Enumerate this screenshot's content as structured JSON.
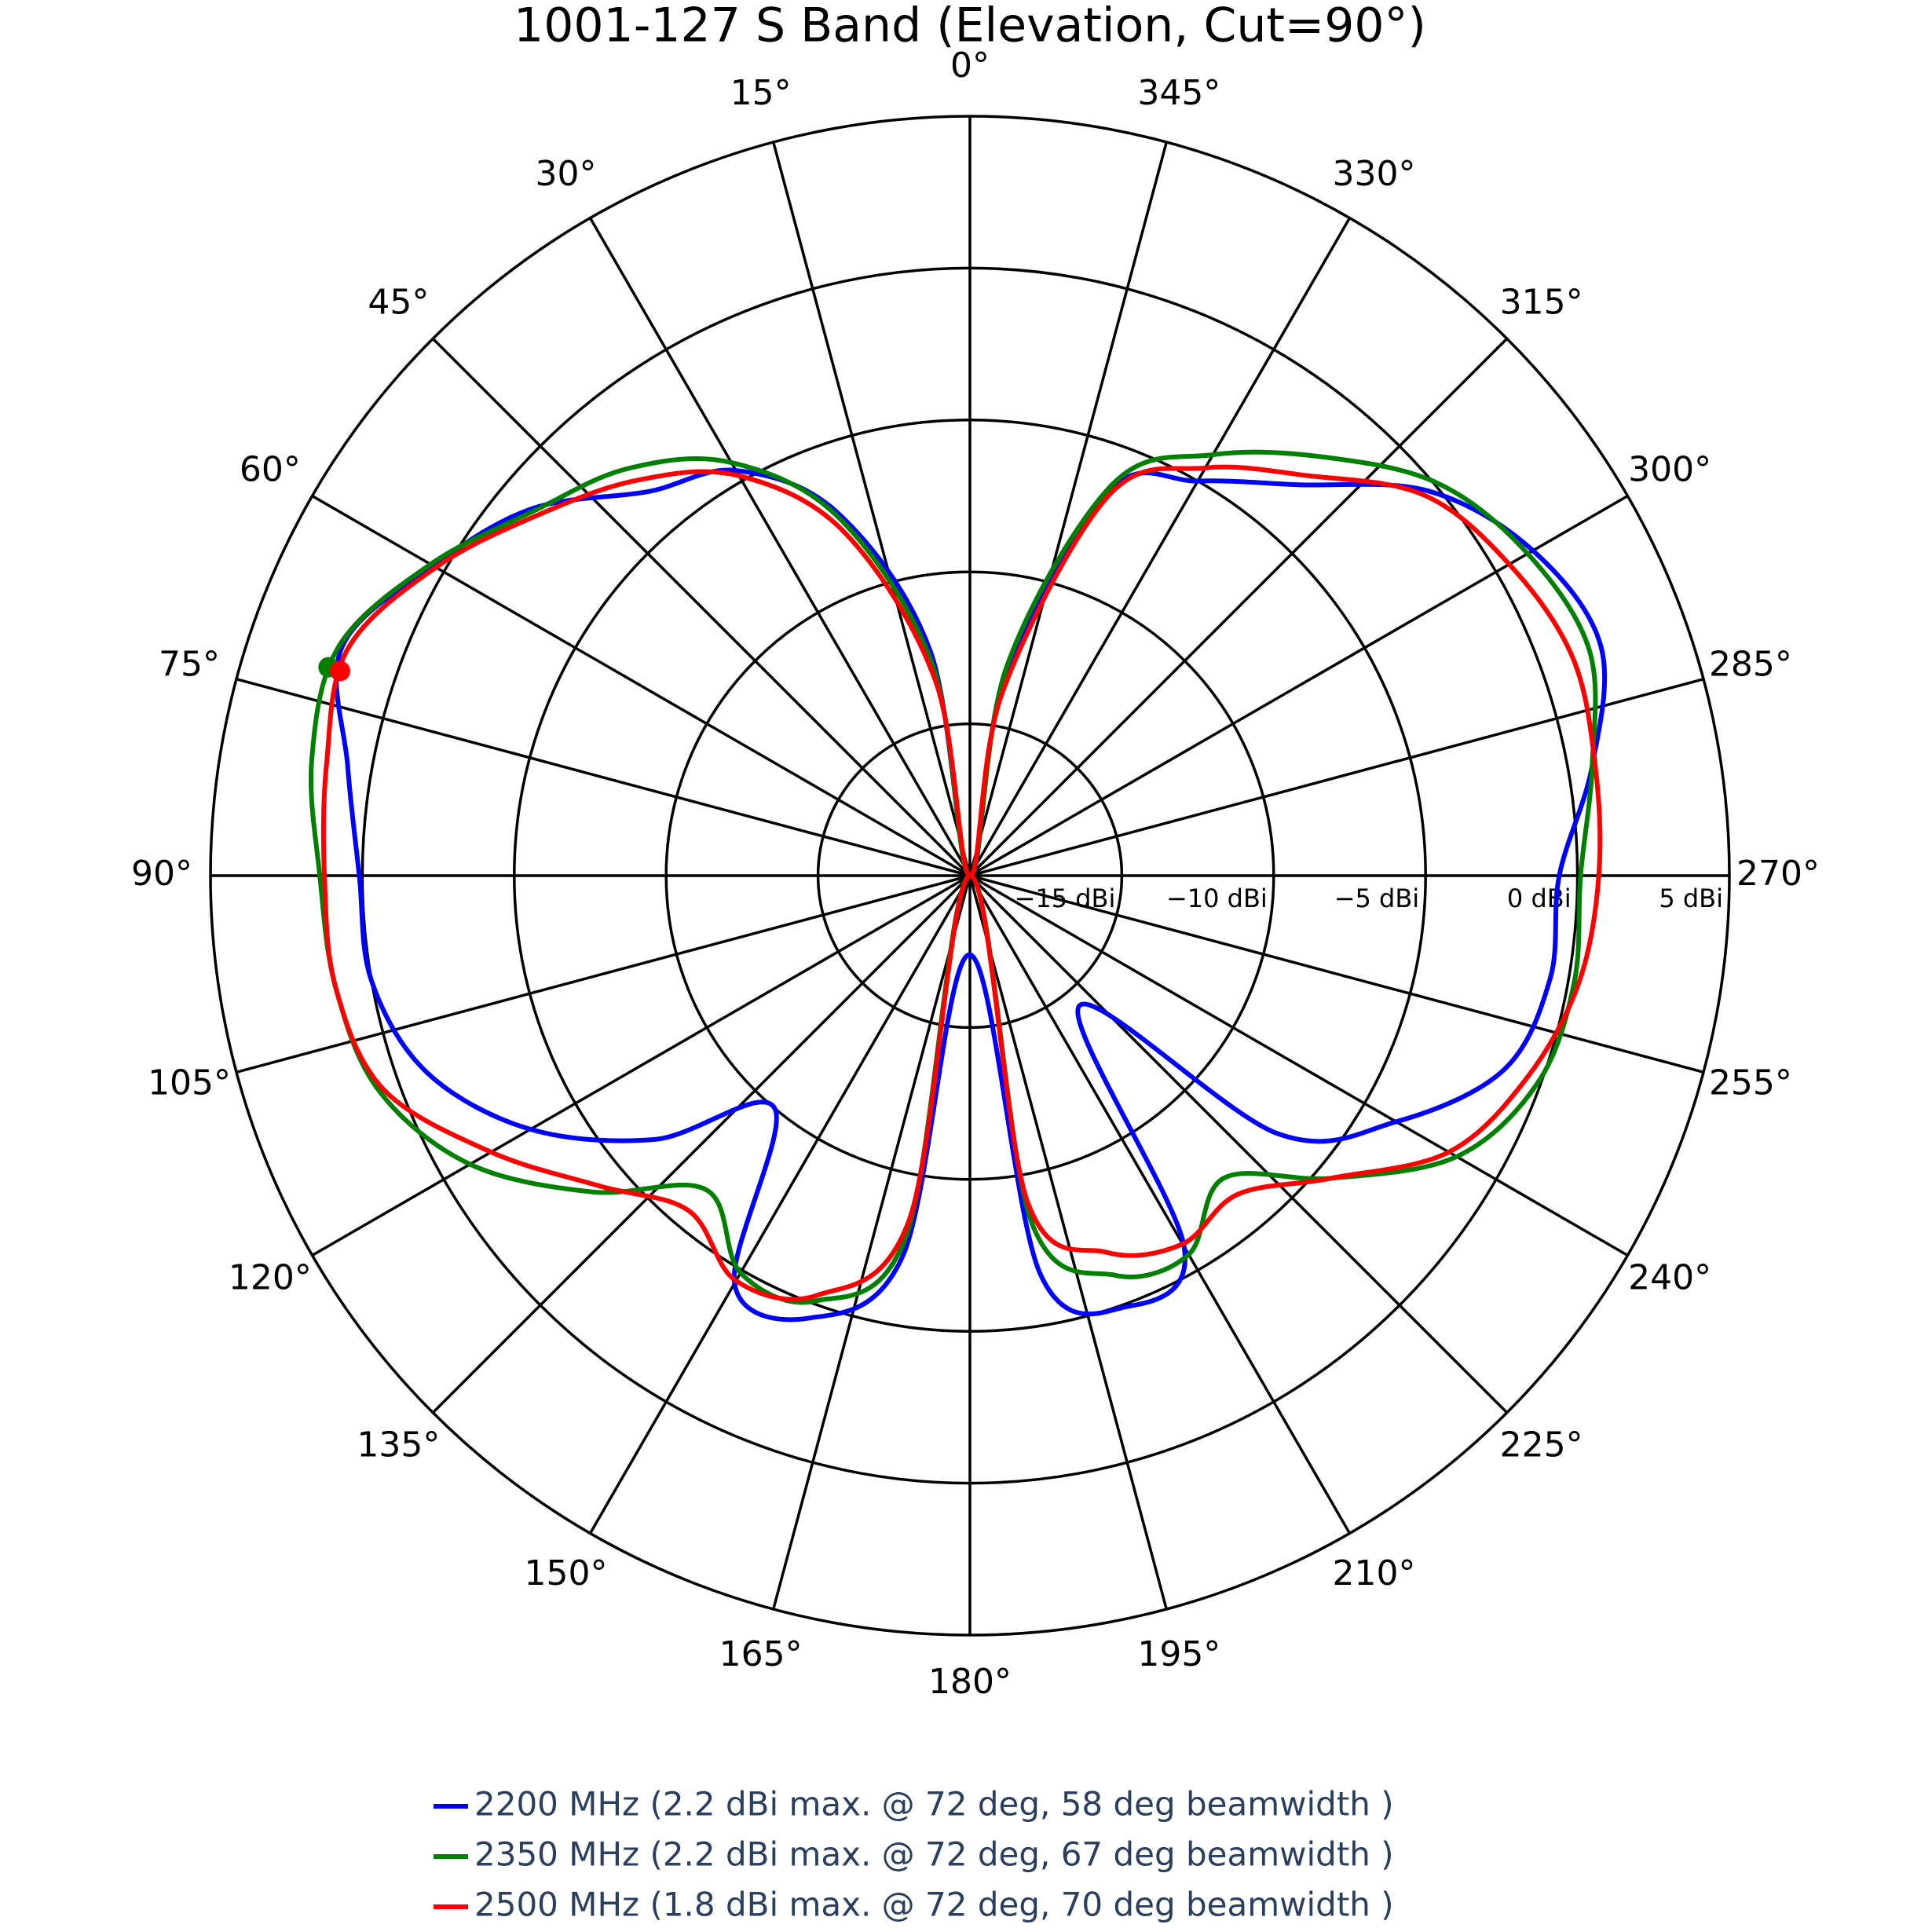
{
  "chart_data": {
    "type": "polar",
    "title": "1001-127 S Band (Elevation, Cut=90°)",
    "direction": "counterclockwise",
    "rlim": [
      -20,
      5
    ],
    "rticks": [
      {
        "value": -15,
        "label": "−15 dBi"
      },
      {
        "value": -10,
        "label": "−10 dBi"
      },
      {
        "value": -5,
        "label": "−5 dBi"
      },
      {
        "value": 0,
        "label": "0 dBi"
      },
      {
        "value": 5,
        "label": "5 dBi"
      }
    ],
    "thetaticks": [
      {
        "value": 0,
        "label": "0°"
      },
      {
        "value": 15,
        "label": "15°"
      },
      {
        "value": 30,
        "label": "30°"
      },
      {
        "value": 45,
        "label": "45°"
      },
      {
        "value": 60,
        "label": "60°"
      },
      {
        "value": 75,
        "label": "75°"
      },
      {
        "value": 90,
        "label": "90°"
      },
      {
        "value": 105,
        "label": "105°"
      },
      {
        "value": 120,
        "label": "120°"
      },
      {
        "value": 135,
        "label": "135°"
      },
      {
        "value": 150,
        "label": "150°"
      },
      {
        "value": 165,
        "label": "165°"
      },
      {
        "value": 180,
        "label": "180°"
      },
      {
        "value": 195,
        "label": "195°"
      },
      {
        "value": 210,
        "label": "210°"
      },
      {
        "value": 225,
        "label": "225°"
      },
      {
        "value": 240,
        "label": "240°"
      },
      {
        "value": 255,
        "label": "255°"
      },
      {
        "value": 270,
        "label": "270°"
      },
      {
        "value": 285,
        "label": "285°"
      },
      {
        "value": 300,
        "label": "300°"
      },
      {
        "value": 315,
        "label": "315°"
      },
      {
        "value": 330,
        "label": "330°"
      },
      {
        "value": 345,
        "label": "345°"
      }
    ],
    "grid": true,
    "theta": [
      0,
      10,
      20,
      30,
      40,
      50,
      60,
      70,
      80,
      90,
      100,
      110,
      120,
      130,
      140,
      150,
      160,
      170,
      180,
      190,
      200,
      210,
      220,
      230,
      240,
      250,
      260,
      270,
      280,
      290,
      300,
      310,
      320,
      330,
      340,
      350
    ],
    "series": [
      {
        "name": "2200 MHz (2.2 dBi max. @ 72 deg, 58 deg beamwidth )",
        "color": "#0000ff",
        "values": [
          -20,
          -12.5,
          -7.3,
          -4.6,
          -3.5,
          -1.2,
          0.4,
          2.0,
          0.8,
          0.1,
          0.0,
          -1.0,
          -3.3,
          -6.5,
          -10,
          -4.5,
          -4.5,
          -7.3,
          -17.4,
          -6.7,
          -4.9,
          -5.9,
          -14.4,
          -6.8,
          -3.8,
          -1.3,
          -0.6,
          -0.6,
          0.8,
          2.1,
          1.4,
          -0.3,
          -3.2,
          -5.0,
          -6.5,
          -13.5
        ]
      },
      {
        "name": "2350 MHz (2.2 dBi max. @ 72 deg, 67 deg beamwidth )",
        "color": "#008000",
        "values": [
          -20,
          -13,
          -7.5,
          -4.3,
          -2.5,
          -1.3,
          0.5,
          2.1,
          2.0,
          1.4,
          1.2,
          0.7,
          -1.0,
          -3.8,
          -6.5,
          -4.9,
          -5.1,
          -8.0,
          -20,
          -8.5,
          -6.0,
          -5.6,
          -7.0,
          -4.5,
          -1.5,
          -0.1,
          0.2,
          0.1,
          0.8,
          1.7,
          1.2,
          0.1,
          -2.0,
          -4.0,
          -6.3,
          -13
        ],
        "marker": {
          "theta": 72,
          "r": 2.2
        }
      },
      {
        "name": "2500 MHz (1.8 dBi max. @ 72 deg, 70 deg beamwidth )",
        "color": "#ff0000",
        "values": [
          -20,
          -13.5,
          -8,
          -4.8,
          -3,
          -1.5,
          0.3,
          1.8,
          1.5,
          1.25,
          1.2,
          0.55,
          -1.8,
          -4.1,
          -5.6,
          -4.6,
          -5.3,
          -8.5,
          -20,
          -9.1,
          -6.8,
          -6.0,
          -6.3,
          -4.5,
          -1.8,
          -0.5,
          0.35,
          0.7,
          0.9,
          1.1,
          0.5,
          -0.5,
          -2.8,
          -4.5,
          -6.7,
          -13.9
        ],
        "marker": {
          "theta": 72,
          "r": 1.8
        }
      }
    ]
  }
}
